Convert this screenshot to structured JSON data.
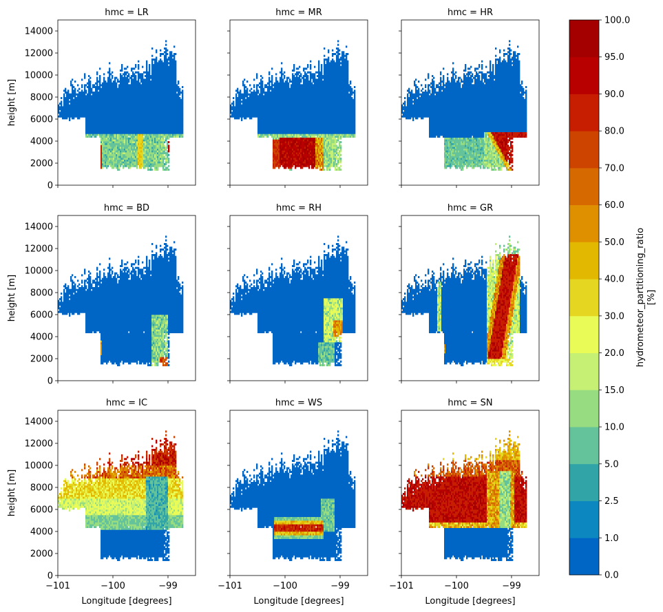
{
  "chart_data": {
    "type": "heatmap",
    "title": "",
    "xlabel": "Longitude [degrees]",
    "ylabel": "height [m]",
    "x_ticks": [
      -101,
      -100,
      -99
    ],
    "y_ticks": [
      0,
      2000,
      4000,
      6000,
      8000,
      10000,
      12000,
      14000
    ],
    "xlim": [
      -101,
      -98.5
    ],
    "ylim": [
      0,
      15000
    ],
    "facet_prefix": "hmc = ",
    "facets": [
      {
        "label": "LR",
        "pattern": "liquid_rain_edges"
      },
      {
        "label": "MR",
        "pattern": "liquid_rain_full"
      },
      {
        "label": "HR",
        "pattern": "heavy_rain_east"
      },
      {
        "label": "BD",
        "pattern": "mostly_low"
      },
      {
        "label": "RH",
        "pattern": "rain_hail_column"
      },
      {
        "label": "GR",
        "pattern": "graupel_column"
      },
      {
        "label": "IC",
        "pattern": "ice_upper"
      },
      {
        "label": "WS",
        "pattern": "wet_snow_band"
      },
      {
        "label": "SN",
        "pattern": "snow_mid"
      }
    ],
    "colorbar": {
      "label_line1": "hydrometeor_partitioning_ratio",
      "label_line2": "[%]",
      "ticks": [
        "0.0",
        "1.0",
        "2.5",
        "5.0",
        "10.0",
        "15.0",
        "20.0",
        "30.0",
        "40.0",
        "50.0",
        "60.0",
        "70.0",
        "80.0",
        "90.0",
        "95.0",
        "100.0"
      ],
      "colors": [
        "#0066c6",
        "#0c87c0",
        "#31a4a8",
        "#64c39a",
        "#97dc80",
        "#c5f074",
        "#e9fb57",
        "#e5d621",
        "#e2b800",
        "#de9000",
        "#d66a00",
        "#cd4300",
        "#c71d00",
        "#b80000",
        "#a40000"
      ]
    }
  }
}
